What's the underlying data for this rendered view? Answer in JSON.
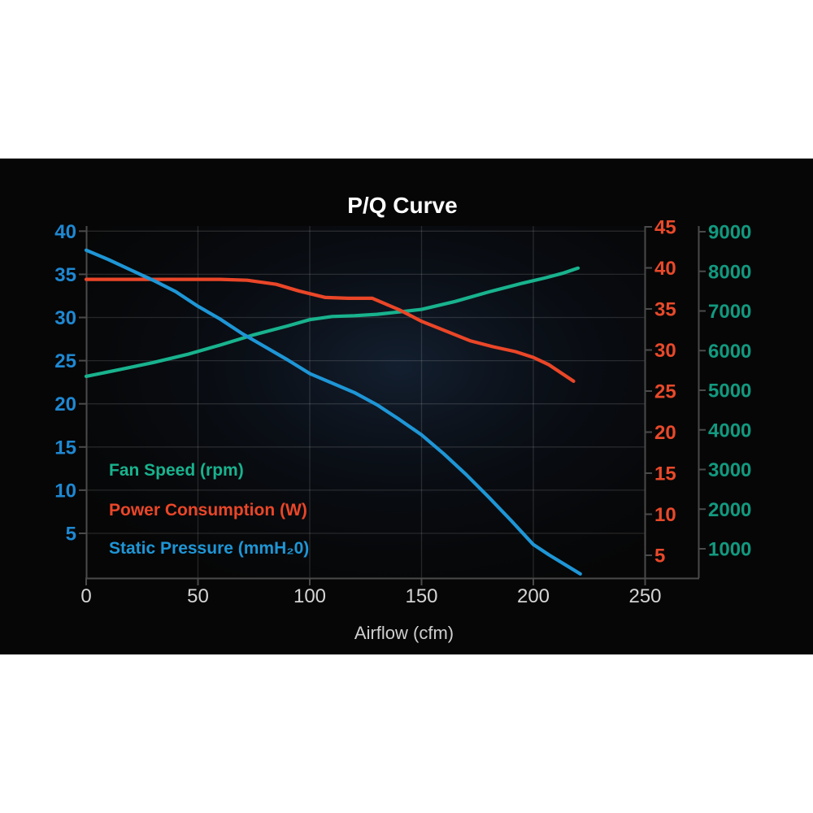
{
  "title": "P/Q Curve",
  "chart_data": {
    "type": "line",
    "title": "P/Q Curve",
    "xlabel": "Airflow (cfm)",
    "x_range": [
      0,
      250
    ],
    "x_ticks": [
      0,
      50,
      100,
      150,
      200,
      250
    ],
    "x_tick_color": "#d4d4d4",
    "panel_background": "#060606",
    "grid": true,
    "legend_position": "inside-bottom-left",
    "axes": {
      "pressure": {
        "side": "left",
        "label_color": "#1e88d2",
        "ticks": [
          40,
          35,
          30,
          25,
          20,
          15,
          10,
          5
        ],
        "range": [
          0,
          40
        ]
      },
      "power": {
        "side": "right-inner",
        "label_color": "#e8492a",
        "ticks": [
          45,
          40,
          35,
          30,
          25,
          20,
          15,
          10,
          5
        ],
        "range": [
          0,
          45
        ]
      },
      "speed": {
        "side": "right-outer",
        "label_color": "#12997f",
        "ticks": [
          9000,
          8000,
          7000,
          6000,
          5000,
          4000,
          3000,
          2000,
          1000
        ],
        "range": [
          0,
          9000
        ]
      }
    },
    "series": [
      {
        "name": "Fan Speed (rpm)",
        "axis": "speed",
        "color": "#18b38e",
        "points": [
          [
            0,
            5350
          ],
          [
            15,
            5520
          ],
          [
            30,
            5700
          ],
          [
            45,
            5900
          ],
          [
            60,
            6140
          ],
          [
            75,
            6400
          ],
          [
            90,
            6620
          ],
          [
            100,
            6780
          ],
          [
            110,
            6860
          ],
          [
            120,
            6880
          ],
          [
            130,
            6915
          ],
          [
            140,
            6975
          ],
          [
            150,
            7040
          ],
          [
            165,
            7240
          ],
          [
            180,
            7480
          ],
          [
            195,
            7700
          ],
          [
            205,
            7830
          ],
          [
            213,
            7950
          ],
          [
            220,
            8080
          ]
        ]
      },
      {
        "name": "Power Consumption (W)",
        "axis": "power",
        "color": "#ea4628",
        "points": [
          [
            0,
            38.6
          ],
          [
            30,
            38.6
          ],
          [
            60,
            38.6
          ],
          [
            72,
            38.5
          ],
          [
            85,
            38.0
          ],
          [
            95,
            37.2
          ],
          [
            107,
            36.4
          ],
          [
            117,
            36.3
          ],
          [
            128,
            36.3
          ],
          [
            140,
            34.9
          ],
          [
            150,
            33.5
          ],
          [
            161,
            32.3
          ],
          [
            172,
            31.1
          ],
          [
            182,
            30.4
          ],
          [
            192,
            29.8
          ],
          [
            200,
            29.1
          ],
          [
            207,
            28.2
          ],
          [
            213,
            27.1
          ],
          [
            218,
            26.2
          ]
        ]
      },
      {
        "name": "Static Pressure (mmH₂0)",
        "axis": "pressure",
        "color": "#1e96d6",
        "points": [
          [
            0,
            37.8
          ],
          [
            10,
            36.7
          ],
          [
            20,
            35.5
          ],
          [
            30,
            34.3
          ],
          [
            40,
            33.0
          ],
          [
            50,
            31.3
          ],
          [
            60,
            29.8
          ],
          [
            70,
            28.1
          ],
          [
            80,
            26.6
          ],
          [
            90,
            25.1
          ],
          [
            100,
            23.5
          ],
          [
            110,
            22.4
          ],
          [
            120,
            21.3
          ],
          [
            130,
            19.9
          ],
          [
            140,
            18.2
          ],
          [
            150,
            16.4
          ],
          [
            160,
            14.2
          ],
          [
            170,
            11.8
          ],
          [
            180,
            9.2
          ],
          [
            190,
            6.5
          ],
          [
            200,
            3.7
          ],
          [
            207,
            2.5
          ],
          [
            214,
            1.4
          ],
          [
            221,
            0.3
          ]
        ]
      }
    ]
  }
}
